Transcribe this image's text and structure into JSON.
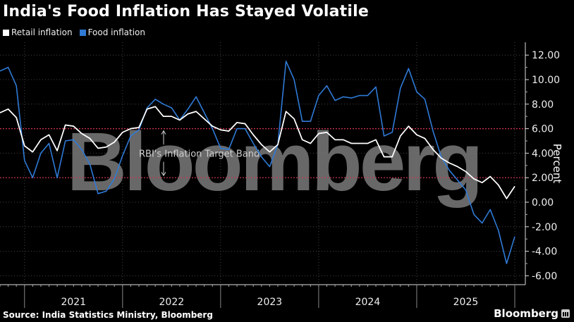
{
  "title": "India's Food Inflation Has Stayed Volatile",
  "legend": [
    {
      "label": "Retail inflation",
      "color": "#ffffff"
    },
    {
      "label": "Food inflation",
      "color": "#2f7ad6"
    }
  ],
  "source": "Source: India Statistics Ministry, Bloomberg",
  "brand": "Bloomberg",
  "watermark": "Bloomberg",
  "annotation": "RBI's Inflation Target Band",
  "colors": {
    "background": "#000000",
    "retail": "#ffffff",
    "food": "#2f7ad6",
    "band": "#d2334f",
    "grid": "#444444",
    "watermark": "#7a7a7a"
  },
  "chart_data": {
    "type": "line",
    "title": "India's Food Inflation Has Stayed Volatile",
    "xlabel": "",
    "ylabel": "Percent",
    "ylim": [
      -6.8,
      13
    ],
    "yticks": [
      12,
      10,
      8,
      6,
      4,
      2,
      0,
      -2,
      -4,
      -6
    ],
    "ytick_labels": [
      "12.00",
      "10.00",
      "8.00",
      "6.00",
      "4.00",
      "2.00",
      "0.00",
      "-2.00",
      "-4.00",
      "-6.00"
    ],
    "x_year_labels": [
      "2021",
      "2022",
      "2023",
      "2024",
      "2025"
    ],
    "x_start": "2020-10",
    "x_end": "2026-01",
    "grid": true,
    "legend_position": "top-left",
    "reference_lines": [
      {
        "y": 6,
        "label": "upper band"
      },
      {
        "y": 2,
        "label": "lower band"
      }
    ],
    "annotations": [
      {
        "text": "RBI's Inflation Target Band",
        "x": "2022-03",
        "y": 4
      }
    ],
    "x": [
      "2020-10",
      "2020-11",
      "2020-12",
      "2021-01",
      "2021-02",
      "2021-03",
      "2021-04",
      "2021-05",
      "2021-06",
      "2021-07",
      "2021-08",
      "2021-09",
      "2021-10",
      "2021-11",
      "2021-12",
      "2022-01",
      "2022-02",
      "2022-03",
      "2022-04",
      "2022-05",
      "2022-06",
      "2022-07",
      "2022-08",
      "2022-09",
      "2022-10",
      "2022-11",
      "2022-12",
      "2023-01",
      "2023-02",
      "2023-03",
      "2023-04",
      "2023-05",
      "2023-06",
      "2023-07",
      "2023-08",
      "2023-09",
      "2023-10",
      "2023-11",
      "2023-12",
      "2024-01",
      "2024-02",
      "2024-03",
      "2024-04",
      "2024-05",
      "2024-06",
      "2024-07",
      "2024-08",
      "2024-09",
      "2024-10",
      "2024-11",
      "2024-12",
      "2025-01",
      "2025-02",
      "2025-03",
      "2025-04",
      "2025-05",
      "2025-06",
      "2025-07",
      "2025-08",
      "2025-09",
      "2025-10",
      "2025-11",
      "2025-12",
      "2026-01"
    ],
    "series": [
      {
        "name": "Retail inflation",
        "color": "#ffffff",
        "values": [
          7.3,
          7.6,
          6.9,
          4.6,
          4.1,
          5.1,
          5.5,
          4.2,
          6.3,
          6.2,
          5.6,
          5.2,
          4.4,
          4.5,
          4.9,
          5.7,
          6.0,
          6.1,
          7.6,
          7.8,
          7.0,
          7.0,
          6.7,
          7.2,
          7.4,
          6.8,
          6.2,
          5.9,
          5.8,
          6.5,
          6.4,
          5.5,
          4.7,
          4.1,
          4.7,
          7.4,
          6.8,
          5.1,
          4.8,
          5.6,
          5.7,
          5.1,
          5.1,
          4.8,
          4.8,
          4.8,
          5.1,
          3.7,
          3.7,
          5.4,
          6.2,
          5.5,
          5.2,
          4.3,
          3.6,
          3.2,
          2.9,
          2.5,
          1.9,
          1.6,
          2.1,
          1.4,
          0.3,
          1.3
        ]
      },
      {
        "name": "Food inflation",
        "color": "#2f7ad6",
        "values": [
          10.7,
          11.0,
          9.5,
          3.4,
          2.0,
          4.0,
          4.8,
          2.0,
          5.0,
          5.1,
          4.3,
          3.1,
          0.7,
          0.9,
          1.9,
          3.8,
          5.4,
          5.9,
          7.7,
          8.4,
          8.0,
          7.7,
          6.7,
          7.6,
          8.6,
          7.3,
          6.0,
          4.4,
          4.3,
          6.0,
          6.0,
          4.8,
          3.7,
          2.9,
          4.7,
          11.5,
          10.0,
          6.6,
          6.6,
          8.7,
          9.5,
          8.3,
          8.6,
          8.5,
          8.7,
          8.7,
          9.4,
          5.4,
          5.7,
          9.3,
          10.9,
          9.0,
          8.4,
          5.8,
          3.7,
          2.6,
          1.8,
          1.0,
          -1.0,
          -1.7,
          -0.6,
          -2.3,
          -5.0,
          -2.8
        ]
      }
    ]
  }
}
